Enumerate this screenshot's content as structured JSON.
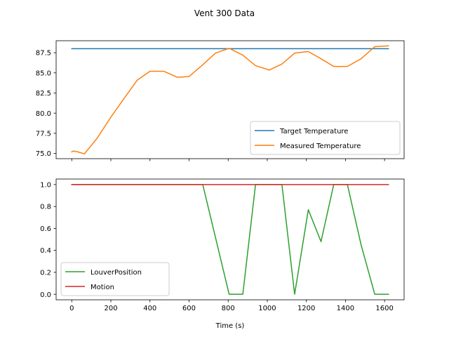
{
  "figure": {
    "title": "Vent 300 Data",
    "background": "#ffffff"
  },
  "chart_data": [
    {
      "type": "line",
      "title": "",
      "xlabel": "",
      "ylabel": "",
      "xlim": [
        -80,
        1700
      ],
      "ylim": [
        74.35,
        88.99
      ],
      "xticks": [
        0,
        200,
        400,
        600,
        800,
        1000,
        1200,
        1400,
        1600
      ],
      "show_xtick_labels": false,
      "yticks": [
        75.0,
        77.5,
        80.0,
        82.5,
        85.0,
        87.5
      ],
      "ytick_labels": [
        "75.0",
        "77.5",
        "80.0",
        "82.5",
        "85.0",
        "87.5"
      ],
      "grid": false,
      "legend_position": "lower-right",
      "series": [
        {
          "name": "Target Temperature",
          "color": "#1f77b4",
          "x": [
            0,
            1620
          ],
          "y": [
            88.0,
            88.0
          ]
        },
        {
          "name": "Measured Temperature",
          "color": "#ff7f0e",
          "x": [
            0,
            10,
            30,
            65,
            130,
            200,
            270,
            335,
            400,
            470,
            540,
            600,
            665,
            735,
            805,
            875,
            940,
            1010,
            1075,
            1140,
            1210,
            1275,
            1340,
            1410,
            1480,
            1550,
            1620
          ],
          "y": [
            75.2,
            75.3,
            75.2,
            74.95,
            76.9,
            79.5,
            81.9,
            84.1,
            85.2,
            85.2,
            84.45,
            84.55,
            85.9,
            87.45,
            88.05,
            87.2,
            85.9,
            85.35,
            86.1,
            87.45,
            87.65,
            86.75,
            85.8,
            85.8,
            86.75,
            88.25,
            88.35
          ]
        }
      ]
    },
    {
      "type": "line",
      "title": "",
      "xlabel": "Time (s)",
      "ylabel": "",
      "xlim": [
        -80,
        1700
      ],
      "ylim": [
        -0.05,
        1.05
      ],
      "xticks": [
        0,
        200,
        400,
        600,
        800,
        1000,
        1200,
        1400,
        1600
      ],
      "xtick_labels": [
        "0",
        "200",
        "400",
        "600",
        "800",
        "1000",
        "1200",
        "1400",
        "1600"
      ],
      "yticks": [
        0.0,
        0.2,
        0.4,
        0.6,
        0.8,
        1.0
      ],
      "ytick_labels": [
        "0.0",
        "0.2",
        "0.4",
        "0.6",
        "0.8",
        "1.0"
      ],
      "grid": false,
      "legend_position": "lower-left",
      "series": [
        {
          "name": "LouverPosition",
          "color": "#2ca02c",
          "x": [
            0,
            670,
            805,
            875,
            940,
            1075,
            1140,
            1210,
            1275,
            1340,
            1410,
            1480,
            1550,
            1620
          ],
          "y": [
            1.0,
            1.0,
            0.0,
            0.0,
            1.0,
            1.0,
            0.0,
            0.77,
            0.48,
            1.0,
            1.0,
            0.45,
            0.0,
            0.0
          ]
        },
        {
          "name": "Motion",
          "color": "#d62728",
          "x": [
            0,
            1620
          ],
          "y": [
            1.0,
            1.0
          ]
        }
      ]
    }
  ]
}
